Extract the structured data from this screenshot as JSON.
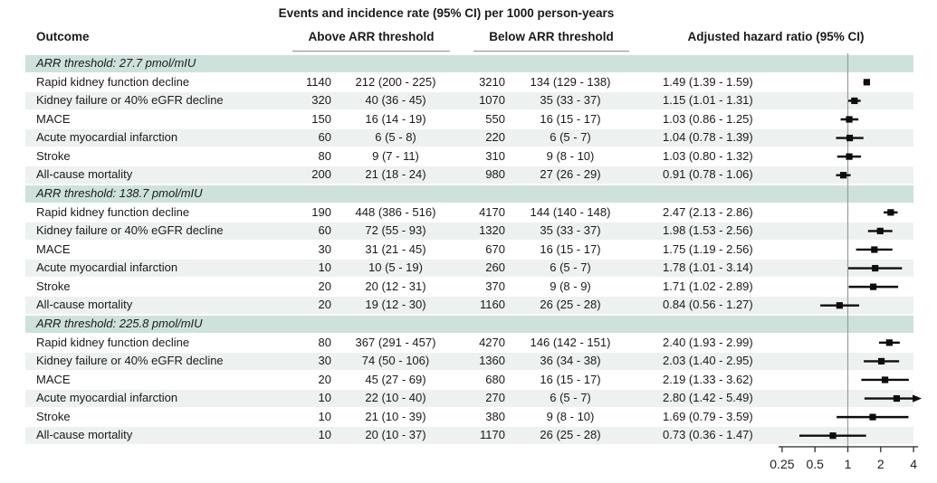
{
  "colors": {
    "section_band": "#cde2da",
    "alt_band": "#edf1ef",
    "marker": "#0d0d0d",
    "reference_line": "#9b9b9b",
    "axis_line": "#3a3a3a"
  },
  "chart_data": {
    "type": "scatter",
    "subtype": "forest-plot-with-table",
    "title": "Events and incidence rate (95% CI) per 1000 person-years",
    "columns": {
      "outcome": "Outcome",
      "above": "Above ARR threshold",
      "below": "Below ARR threshold",
      "hr": "Adjusted hazard ratio (95% CI)"
    },
    "x_axis": {
      "scale": "log2",
      "ticks": [
        0.25,
        0.5,
        1,
        2,
        4
      ],
      "tick_labels": [
        "0.25",
        "0.5",
        "1",
        "2",
        "4"
      ],
      "range": [
        0.25,
        4
      ],
      "reference_line": 1,
      "grid": false
    },
    "sections": [
      {
        "header": "ARR threshold: 27.7 pmol/mIU",
        "rows": [
          {
            "outcome": "Rapid kidney function decline",
            "events_above": "1140",
            "rate_above": "212 (200 - 225)",
            "events_below": "3210",
            "rate_below": "134 (129 - 138)",
            "hr_text": "1.49 (1.39 - 1.59)",
            "hr": 1.49,
            "lo": 1.39,
            "hi": 1.59
          },
          {
            "outcome": "Kidney failure or 40% eGFR decline",
            "events_above": "320",
            "rate_above": "40 (36 - 45)",
            "events_below": "1070",
            "rate_below": "35 (33 - 37)",
            "hr_text": "1.15 (1.01 - 1.31)",
            "hr": 1.15,
            "lo": 1.01,
            "hi": 1.31
          },
          {
            "outcome": "MACE",
            "events_above": "150",
            "rate_above": "16 (14 - 19)",
            "events_below": "550",
            "rate_below": "16 (15 - 17)",
            "hr_text": "1.03 (0.86 - 1.25)",
            "hr": 1.03,
            "lo": 0.86,
            "hi": 1.25
          },
          {
            "outcome": "Acute myocardial infarction",
            "events_above": "60",
            "rate_above": "6 (5 - 8)",
            "events_below": "220",
            "rate_below": "6 (5 - 7)",
            "hr_text": "1.04 (0.78 - 1.39)",
            "hr": 1.04,
            "lo": 0.78,
            "hi": 1.39
          },
          {
            "outcome": "Stroke",
            "events_above": "80",
            "rate_above": "9 (7 - 11)",
            "events_below": "310",
            "rate_below": "9 (8 - 10)",
            "hr_text": "1.03 (0.80 - 1.32)",
            "hr": 1.03,
            "lo": 0.8,
            "hi": 1.32
          },
          {
            "outcome": "All-cause mortality",
            "events_above": "200",
            "rate_above": "21 (18 - 24)",
            "events_below": "980",
            "rate_below": "27 (26 - 29)",
            "hr_text": "0.91 (0.78 - 1.06)",
            "hr": 0.91,
            "lo": 0.78,
            "hi": 1.06
          }
        ]
      },
      {
        "header": "ARR threshold: 138.7 pmol/mIU",
        "rows": [
          {
            "outcome": "Rapid kidney function decline",
            "events_above": "190",
            "rate_above": "448 (386 - 516)",
            "events_below": "4170",
            "rate_below": "144 (140 - 148)",
            "hr_text": "2.47 (2.13 - 2.86)",
            "hr": 2.47,
            "lo": 2.13,
            "hi": 2.86
          },
          {
            "outcome": "Kidney failure or 40% eGFR decline",
            "events_above": "60",
            "rate_above": "72 (55 - 93)",
            "events_below": "1320",
            "rate_below": "35 (33 - 37)",
            "hr_text": "1.98 (1.53 - 2.56)",
            "hr": 1.98,
            "lo": 1.53,
            "hi": 2.56
          },
          {
            "outcome": "MACE",
            "events_above": "30",
            "rate_above": "31 (21 - 45)",
            "events_below": "670",
            "rate_below": "16 (15 - 17)",
            "hr_text": "1.75 (1.19 - 2.56)",
            "hr": 1.75,
            "lo": 1.19,
            "hi": 2.56
          },
          {
            "outcome": "Acute myocardial infarction",
            "events_above": "10",
            "rate_above": "10 (5 - 19)",
            "events_below": "260",
            "rate_below": "6 (5 - 7)",
            "hr_text": "1.78 (1.01 - 3.14)",
            "hr": 1.78,
            "lo": 1.01,
            "hi": 3.14
          },
          {
            "outcome": "Stroke",
            "events_above": "20",
            "rate_above": "20 (12 - 31)",
            "events_below": "370",
            "rate_below": "9 (8 - 9)",
            "hr_text": "1.71 (1.02 - 2.89)",
            "hr": 1.71,
            "lo": 1.02,
            "hi": 2.89
          },
          {
            "outcome": "All-cause mortality",
            "events_above": "20",
            "rate_above": "19 (12 - 30)",
            "events_below": "1160",
            "rate_below": "26 (25 - 28)",
            "hr_text": "0.84 (0.56 - 1.27)",
            "hr": 0.84,
            "lo": 0.56,
            "hi": 1.27
          }
        ]
      },
      {
        "header": "ARR threshold: 225.8 pmol/mIU",
        "rows": [
          {
            "outcome": "Rapid kidney function decline",
            "events_above": "80",
            "rate_above": "367 (291 - 457)",
            "events_below": "4270",
            "rate_below": "146 (142 - 151)",
            "hr_text": "2.40 (1.93 - 2.99)",
            "hr": 2.4,
            "lo": 1.93,
            "hi": 2.99
          },
          {
            "outcome": "Kidney failure or 40% eGFR decline",
            "events_above": "30",
            "rate_above": "74 (50 - 106)",
            "events_below": "1360",
            "rate_below": "36 (34 - 38)",
            "hr_text": "2.03 (1.40 - 2.95)",
            "hr": 2.03,
            "lo": 1.4,
            "hi": 2.95
          },
          {
            "outcome": "MACE",
            "events_above": "20",
            "rate_above": "45 (27 - 69)",
            "events_below": "680",
            "rate_below": "16 (15 - 17)",
            "hr_text": "2.19 (1.33 - 3.62)",
            "hr": 2.19,
            "lo": 1.33,
            "hi": 3.62
          },
          {
            "outcome": "Acute myocardial infarction",
            "events_above": "10",
            "rate_above": "22 (10 - 40)",
            "events_below": "270",
            "rate_below": "6 (5 - 7)",
            "hr_text": "2.80 (1.42 - 5.49)",
            "hr": 2.8,
            "lo": 1.42,
            "hi": 5.49
          },
          {
            "outcome": "Stroke",
            "events_above": "10",
            "rate_above": "21 (10 - 39)",
            "events_below": "380",
            "rate_below": "9 (8 - 10)",
            "hr_text": "1.69 (0.79 - 3.59)",
            "hr": 1.69,
            "lo": 0.79,
            "hi": 3.59
          },
          {
            "outcome": "All-cause mortality",
            "events_above": "10",
            "rate_above": "20 (10 - 37)",
            "events_below": "1170",
            "rate_below": "26 (25 - 28)",
            "hr_text": "0.73 (0.36 - 1.47)",
            "hr": 0.73,
            "lo": 0.36,
            "hi": 1.47
          }
        ]
      }
    ]
  }
}
